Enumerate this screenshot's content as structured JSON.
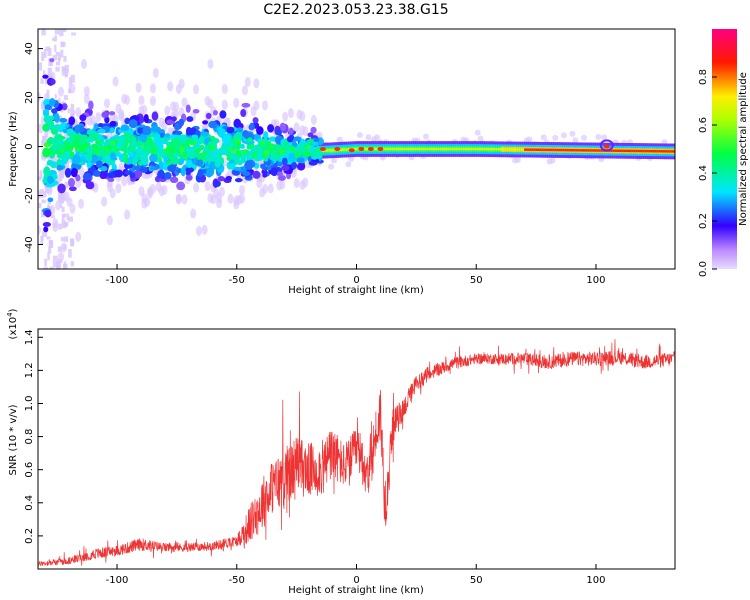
{
  "figure": {
    "title": "C2E2.2023.053.23.38.G15"
  },
  "chart_data": [
    {
      "type": "heatmap",
      "title": "C2E2.2023.053.23.38.G15",
      "xlabel": "Height of straight line (km)",
      "ylabel": "Frequency (Hz)",
      "xlim": [
        -133,
        133
      ],
      "ylim": [
        -50,
        48
      ],
      "xticks": [
        -100,
        -50,
        0,
        50,
        100
      ],
      "yticks": [
        -40,
        -20,
        0,
        20,
        40
      ],
      "colorbar": {
        "label": "Normalized spectral amplitude",
        "range": [
          0,
          1
        ],
        "ticks": [
          0.0,
          0.2,
          0.4,
          0.6,
          0.8
        ],
        "colormap": [
          "#e4d4fe",
          "#3300ff",
          "#00e5ff",
          "#00ff44",
          "#ffee00",
          "#ff0000",
          "#ff007f"
        ]
      },
      "description_points": [
        {
          "x": -133,
          "spread": 45
        },
        {
          "x": -120,
          "spread": 16
        },
        {
          "x": -100,
          "spread": 14
        },
        {
          "x": -75,
          "spread": 14
        },
        {
          "x": -50,
          "spread": 16
        },
        {
          "x": -25,
          "spread": 8
        },
        {
          "x": 0,
          "spread": 3
        },
        {
          "x": 50,
          "spread": 3
        },
        {
          "x": 105,
          "spread": 4
        },
        {
          "x": 133,
          "spread": 3
        }
      ],
      "center_frequency": [
        {
          "x": -133,
          "y": 0
        },
        {
          "x": -20,
          "y": -2
        },
        {
          "x": 0,
          "y": -1
        },
        {
          "x": 50,
          "y": -1
        },
        {
          "x": 133,
          "y": -2
        }
      ]
    },
    {
      "type": "line",
      "xlabel": "Height of straight line (km)",
      "ylabel": "SNR (10 * v/v)",
      "y_multiplier": "(x10^4)",
      "xlim": [
        -133,
        133
      ],
      "ylim": [
        0,
        1.45
      ],
      "xticks": [
        -100,
        -50,
        0,
        50,
        100
      ],
      "yticks": [
        0.2,
        0.4,
        0.6,
        0.8,
        1.0,
        1.2,
        1.4
      ],
      "series": [
        {
          "color": "#ee3333",
          "x": [
            -133,
            -120,
            -110,
            -100,
            -90,
            -80,
            -70,
            -60,
            -50,
            -45,
            -40,
            -35,
            -30,
            -25,
            -20,
            -15,
            -10,
            -5,
            0,
            5,
            8,
            10,
            12,
            15,
            20,
            25,
            30,
            40,
            50,
            60,
            70,
            80,
            90,
            100,
            110,
            120,
            133
          ],
          "y": [
            0.03,
            0.05,
            0.09,
            0.11,
            0.15,
            0.13,
            0.13,
            0.14,
            0.17,
            0.26,
            0.38,
            0.5,
            0.55,
            0.62,
            0.6,
            0.6,
            0.7,
            0.62,
            0.72,
            0.6,
            0.8,
            0.95,
            0.35,
            0.85,
            0.98,
            1.12,
            1.18,
            1.24,
            1.27,
            1.27,
            1.27,
            1.25,
            1.27,
            1.27,
            1.28,
            1.25,
            1.27
          ],
          "noise": [
            0.03,
            0.04,
            0.06,
            0.06,
            0.07,
            0.05,
            0.05,
            0.05,
            0.06,
            0.2,
            0.3,
            0.3,
            0.35,
            0.35,
            0.3,
            0.3,
            0.3,
            0.25,
            0.25,
            0.3,
            0.3,
            0.35,
            0.3,
            0.2,
            0.12,
            0.1,
            0.08,
            0.07,
            0.06,
            0.06,
            0.07,
            0.08,
            0.08,
            0.08,
            0.08,
            0.08,
            0.08
          ]
        }
      ]
    }
  ]
}
